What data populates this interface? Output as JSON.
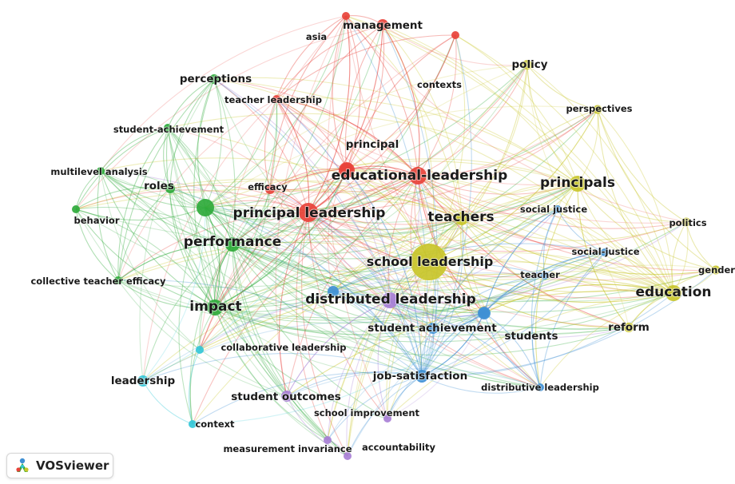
{
  "app_name": "VOSviewer",
  "cluster_colors": {
    "red": "#e8423a",
    "green": "#2faa3b",
    "yellow": "#c9c62a",
    "blue": "#3f90d4",
    "purple": "#a87fd6",
    "cyan": "#33c7d8"
  },
  "nodes": [
    {
      "label": "school leadership",
      "cluster": "yellow",
      "size": 46,
      "weight": 3
    },
    {
      "label": "principal leadership",
      "cluster": "red",
      "size": 24,
      "weight": 2
    },
    {
      "label": "educational-leadership",
      "cluster": "red",
      "size": 22,
      "weight": 2
    },
    {
      "label": "principal",
      "cluster": "red",
      "size": 16,
      "weight": 1
    },
    {
      "label": "management",
      "cluster": "red",
      "size": 14,
      "weight": 1
    },
    {
      "label": "asia",
      "cluster": "red",
      "size": 10,
      "weight": 0
    },
    {
      "label": "contexts",
      "cluster": "red",
      "size": 10,
      "weight": 0
    },
    {
      "label": "teacher leadership",
      "cluster": "red",
      "size": 10,
      "weight": 0
    },
    {
      "label": "efficacy",
      "cluster": "red",
      "size": 12,
      "weight": 0
    },
    {
      "label": "perceptions",
      "cluster": "green",
      "size": 12,
      "weight": 1
    },
    {
      "label": "student-achievement",
      "cluster": "green",
      "size": 10,
      "weight": 0
    },
    {
      "label": "multilevel analysis",
      "cluster": "green",
      "size": 10,
      "weight": 0
    },
    {
      "label": "roles",
      "cluster": "green",
      "size": 12,
      "weight": 1
    },
    {
      "label": "behavior",
      "cluster": "green",
      "size": 10,
      "weight": 0
    },
    {
      "label": "performance",
      "cluster": "green",
      "size": 18,
      "weight": 2
    },
    {
      "label": "collective teacher efficacy",
      "cluster": "green",
      "size": 10,
      "weight": 0
    },
    {
      "label": "impact",
      "cluster": "green",
      "size": 20,
      "weight": 2
    },
    {
      "label": "policy",
      "cluster": "yellow",
      "size": 12,
      "weight": 1
    },
    {
      "label": "perspectives",
      "cluster": "yellow",
      "size": 11,
      "weight": 0
    },
    {
      "label": "principals",
      "cluster": "yellow",
      "size": 20,
      "weight": 2
    },
    {
      "label": "teachers",
      "cluster": "yellow",
      "size": 16,
      "weight": 2
    },
    {
      "label": "politics",
      "cluster": "yellow",
      "size": 11,
      "weight": 0
    },
    {
      "label": "gender",
      "cluster": "yellow",
      "size": 11,
      "weight": 0
    },
    {
      "label": "education",
      "cluster": "yellow",
      "size": 20,
      "weight": 2
    },
    {
      "label": "reform",
      "cluster": "yellow",
      "size": 12,
      "weight": 1
    },
    {
      "label": "social justice",
      "cluster": "blue",
      "size": 10,
      "weight": 0
    },
    {
      "label": "social-justice",
      "cluster": "blue",
      "size": 10,
      "weight": 0
    },
    {
      "label": "teacher",
      "cluster": "blue",
      "size": 10,
      "weight": 0
    },
    {
      "label": "student achievement",
      "cluster": "blue",
      "size": 14,
      "weight": 1
    },
    {
      "label": "students",
      "cluster": "blue",
      "size": 13,
      "weight": 1
    },
    {
      "label": "job-satisfaction",
      "cluster": "blue",
      "size": 16,
      "weight": 1
    },
    {
      "label": "distributive leadership",
      "cluster": "blue",
      "size": 10,
      "weight": 0
    },
    {
      "label": "distributed leadership",
      "cluster": "purple",
      "size": 20,
      "weight": 2
    },
    {
      "label": "student outcomes",
      "cluster": "purple",
      "size": 14,
      "weight": 1
    },
    {
      "label": "school improvement",
      "cluster": "purple",
      "size": 10,
      "weight": 0
    },
    {
      "label": "accountability",
      "cluster": "purple",
      "size": 10,
      "weight": 0
    },
    {
      "label": "measurement invariance",
      "cluster": "purple",
      "size": 10,
      "weight": 0
    },
    {
      "label": "collaborative leadership",
      "cluster": "cyan",
      "size": 10,
      "weight": 0
    },
    {
      "label": "leadership",
      "cluster": "cyan",
      "size": 14,
      "weight": 1
    },
    {
      "label": "context",
      "cluster": "cyan",
      "size": 10,
      "weight": 0
    }
  ]
}
